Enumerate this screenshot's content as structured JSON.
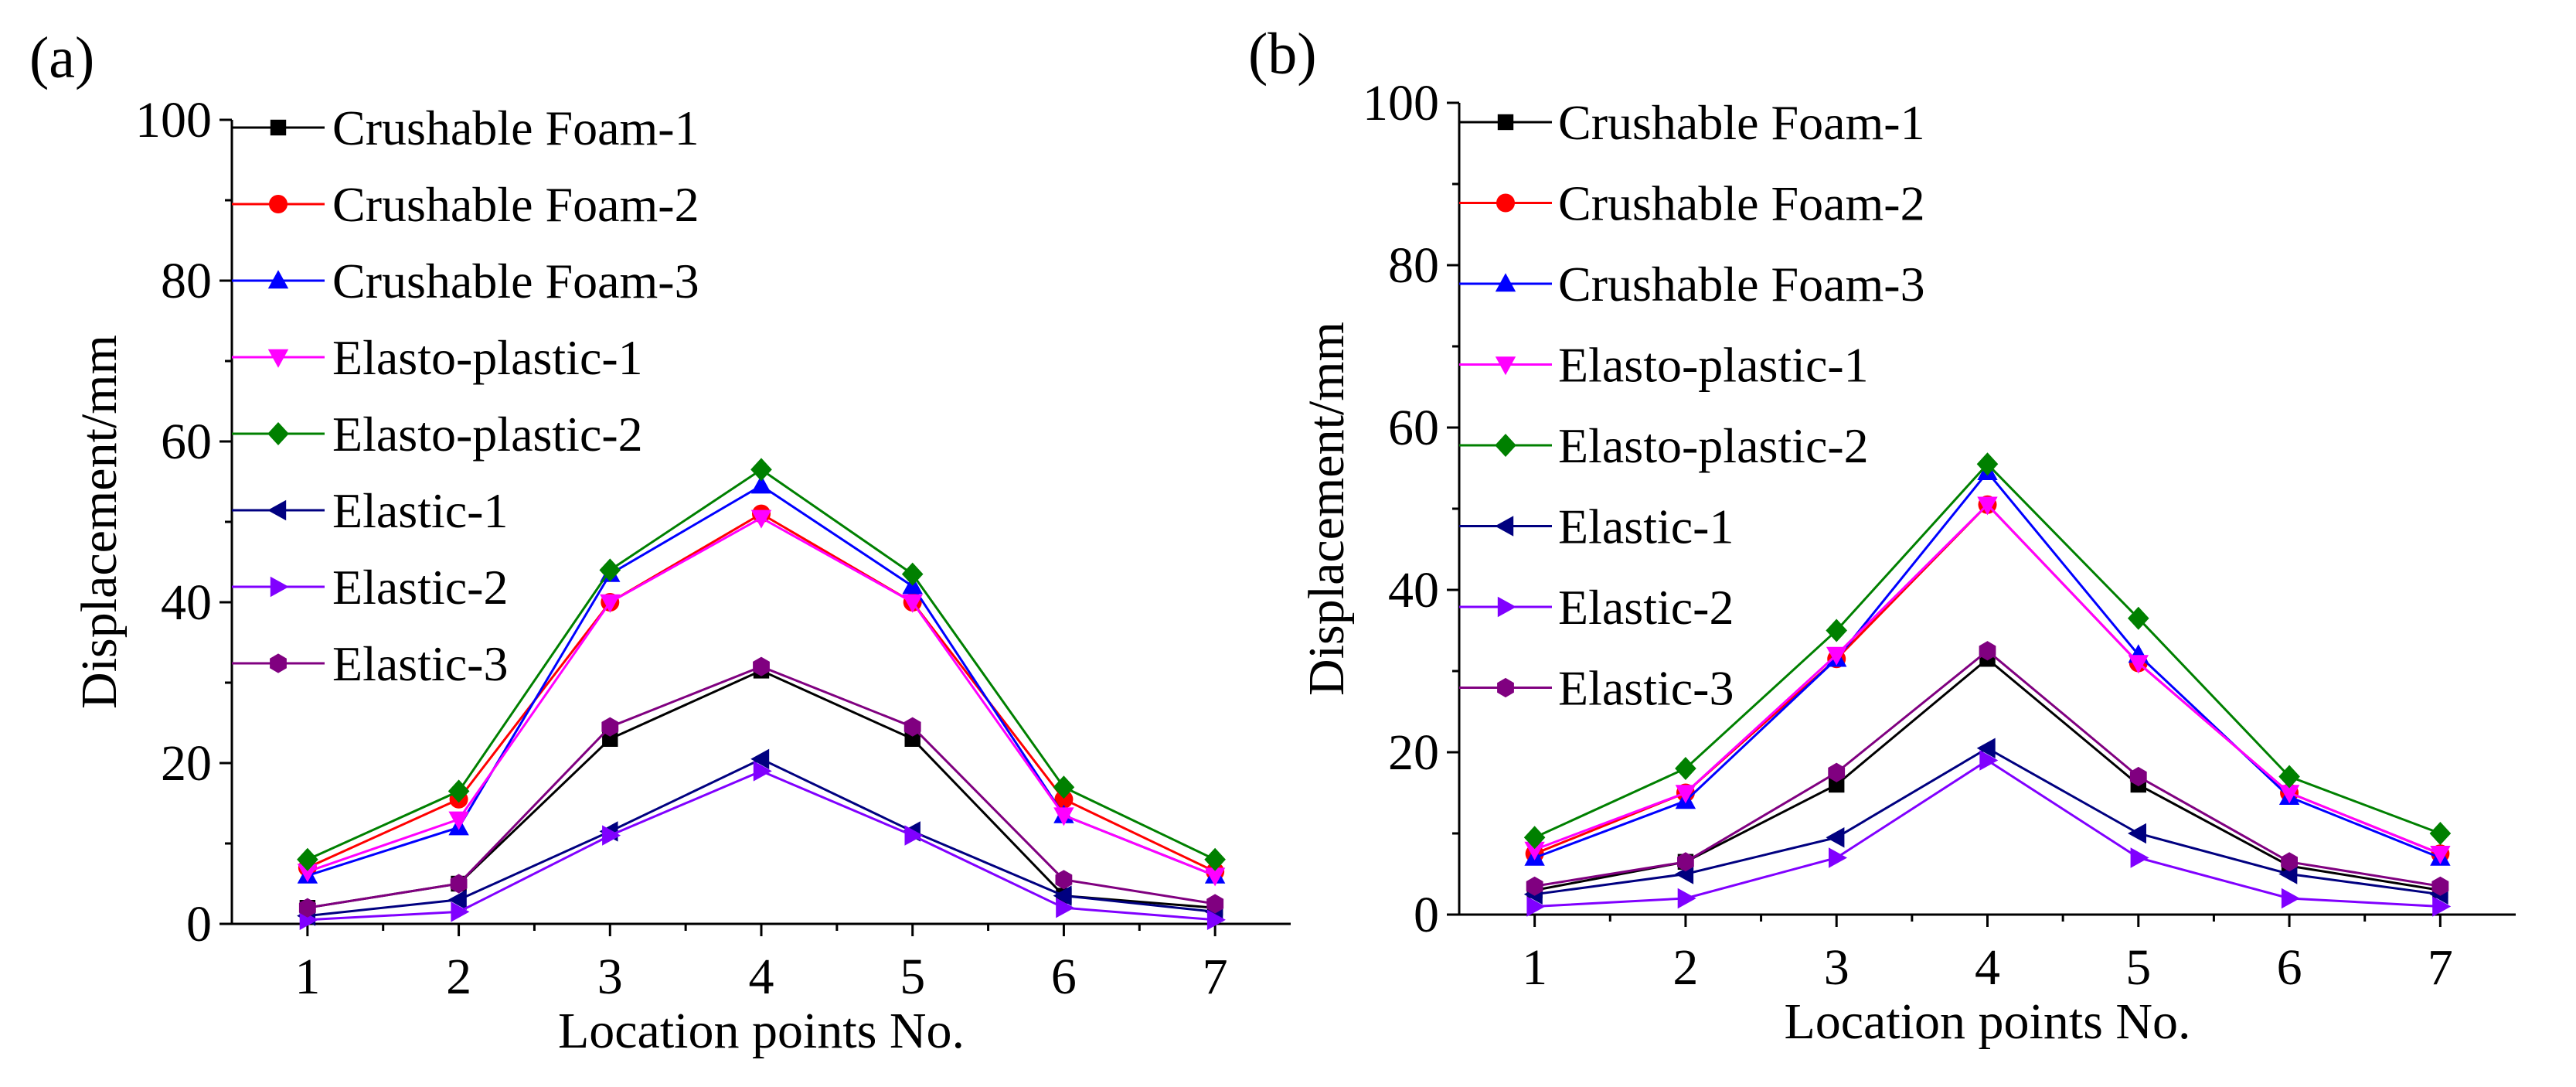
{
  "chart_data": [
    {
      "type": "line",
      "panel_label": "(a)",
      "xlabel": "Location points No.",
      "ylabel": "Displacement/mm",
      "x": [
        1,
        2,
        3,
        4,
        5,
        6,
        7
      ],
      "xlim": [
        0.5,
        7.5
      ],
      "ylim": [
        0,
        100
      ],
      "yticks": [
        0,
        20,
        40,
        60,
        80,
        100
      ],
      "grid": false,
      "legend_position": "top-left",
      "series": [
        {
          "name": "Crushable Foam-1",
          "color": "#000000",
          "marker": "square",
          "values": [
            2.0,
            5.0,
            23.0,
            31.5,
            23.0,
            3.5,
            2.0
          ]
        },
        {
          "name": "Crushable Foam-2",
          "color": "#ff0000",
          "marker": "circle",
          "values": [
            7.0,
            15.5,
            40.0,
            51.0,
            40.0,
            15.5,
            6.5
          ]
        },
        {
          "name": "Crushable Foam-3",
          "color": "#0000ff",
          "marker": "triangle-up",
          "values": [
            6.0,
            12.0,
            43.5,
            54.5,
            42.0,
            13.5,
            6.0
          ]
        },
        {
          "name": "Elasto-plastic-1",
          "color": "#ff00ff",
          "marker": "triangle-down",
          "values": [
            6.5,
            13.0,
            40.0,
            50.5,
            40.0,
            13.5,
            6.0
          ]
        },
        {
          "name": "Elasto-plastic-2",
          "color": "#008000",
          "marker": "diamond",
          "values": [
            8.0,
            16.5,
            44.0,
            56.5,
            43.5,
            17.0,
            8.0
          ]
        },
        {
          "name": "Elastic-1",
          "color": "#000080",
          "marker": "triangle-left",
          "values": [
            1.0,
            3.0,
            11.5,
            20.5,
            11.5,
            3.5,
            1.5
          ]
        },
        {
          "name": "Elastic-2",
          "color": "#8000ff",
          "marker": "triangle-right",
          "values": [
            0.5,
            1.5,
            11.0,
            19.0,
            11.0,
            2.0,
            0.5
          ]
        },
        {
          "name": "Elastic-3",
          "color": "#800080",
          "marker": "hexagon",
          "values": [
            2.0,
            5.0,
            24.5,
            32.0,
            24.5,
            5.5,
            2.5
          ]
        }
      ]
    },
    {
      "type": "line",
      "panel_label": "(b)",
      "xlabel": "Location points No.",
      "ylabel": "Displacement/mm",
      "x": [
        1,
        2,
        3,
        4,
        5,
        6,
        7
      ],
      "xlim": [
        0.5,
        7.5
      ],
      "ylim": [
        0,
        100
      ],
      "yticks": [
        0,
        20,
        40,
        60,
        80,
        100
      ],
      "grid": false,
      "legend_position": "top-left",
      "series": [
        {
          "name": "Crushable Foam-1",
          "color": "#000000",
          "marker": "square",
          "values": [
            3.0,
            6.5,
            16.0,
            31.5,
            16.0,
            6.0,
            3.0
          ]
        },
        {
          "name": "Crushable Foam-2",
          "color": "#ff0000",
          "marker": "circle",
          "values": [
            7.5,
            15.0,
            31.5,
            50.5,
            31.0,
            15.0,
            7.5
          ]
        },
        {
          "name": "Crushable Foam-3",
          "color": "#0000ff",
          "marker": "triangle-up",
          "values": [
            7.0,
            14.0,
            31.5,
            54.5,
            32.0,
            14.5,
            7.0
          ]
        },
        {
          "name": "Elasto-plastic-1",
          "color": "#ff00ff",
          "marker": "triangle-down",
          "values": [
            8.0,
            15.0,
            32.0,
            50.5,
            31.0,
            15.0,
            7.5
          ]
        },
        {
          "name": "Elasto-plastic-2",
          "color": "#008000",
          "marker": "diamond",
          "values": [
            9.5,
            18.0,
            35.0,
            55.5,
            36.5,
            17.0,
            10.0
          ]
        },
        {
          "name": "Elastic-1",
          "color": "#000080",
          "marker": "triangle-left",
          "values": [
            2.5,
            5.0,
            9.5,
            20.5,
            10.0,
            5.0,
            2.5
          ]
        },
        {
          "name": "Elastic-2",
          "color": "#8000ff",
          "marker": "triangle-right",
          "values": [
            1.0,
            2.0,
            7.0,
            19.0,
            7.0,
            2.0,
            1.0
          ]
        },
        {
          "name": "Elastic-3",
          "color": "#800080",
          "marker": "hexagon",
          "values": [
            3.5,
            6.5,
            17.5,
            32.5,
            17.0,
            6.5,
            3.5
          ]
        }
      ]
    }
  ]
}
